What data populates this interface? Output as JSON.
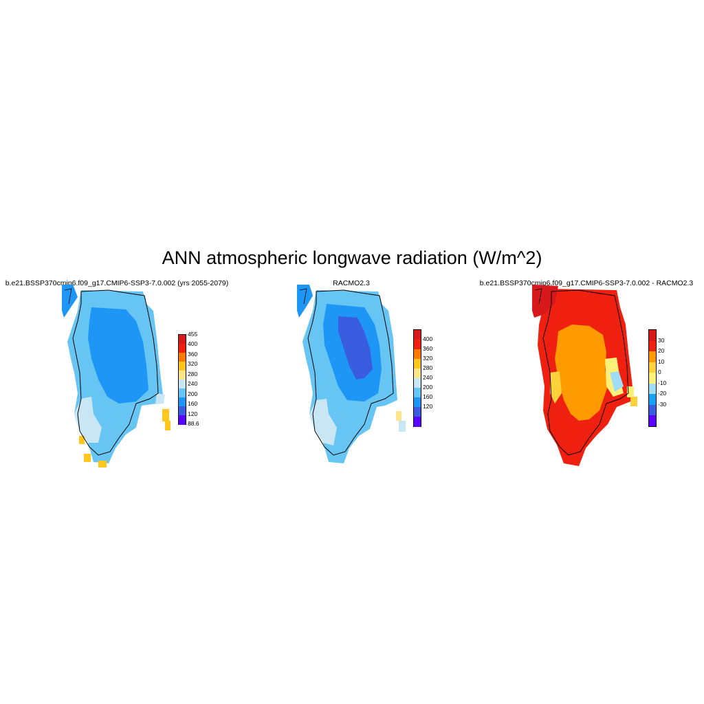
{
  "title": "ANN atmospheric longwave radiation (W/m^2)",
  "panels": [
    {
      "id": "model",
      "title": "b.e21.BSSP370cmip6.f09_g17.CMIP6-SSP3-7.0.002 (yrs 2055-2079)",
      "colorbar": {
        "labels": [
          "455",
          "400",
          "360",
          "320",
          "280",
          "240",
          "200",
          "160",
          "120",
          "88.6"
        ],
        "colors": [
          "#d7191c",
          "#f02010",
          "#ff7a00",
          "#ffc61e",
          "#fde68a",
          "#c9e6f5",
          "#66c5f2",
          "#1e96f5",
          "#3a5de0",
          "#5a00ff"
        ]
      }
    },
    {
      "id": "obs",
      "title": "RACMO2.3",
      "colorbar": {
        "labels": [
          "400",
          "360",
          "320",
          "280",
          "240",
          "200",
          "160",
          "120"
        ],
        "colors": [
          "#d7191c",
          "#f02010",
          "#ff7a00",
          "#ffc61e",
          "#fde68a",
          "#c9e6f5",
          "#66c5f2",
          "#1e96f5",
          "#3a5de0",
          "#5a00ff"
        ]
      }
    },
    {
      "id": "diff",
      "title": "b.e21.BSSP370cmip6.f09_g17.CMIP6-SSP3-7.0.002 - RACMO2.3",
      "colorbar": {
        "labels": [
          "30",
          "20",
          "10",
          "0",
          "-10",
          "-20",
          "-30"
        ],
        "colors": [
          "#d7191c",
          "#f02010",
          "#ff9a00",
          "#ffd23c",
          "#fff07a",
          "#9fdcf5",
          "#1aa0f0",
          "#3a5de0",
          "#5a00ff"
        ]
      }
    }
  ]
}
